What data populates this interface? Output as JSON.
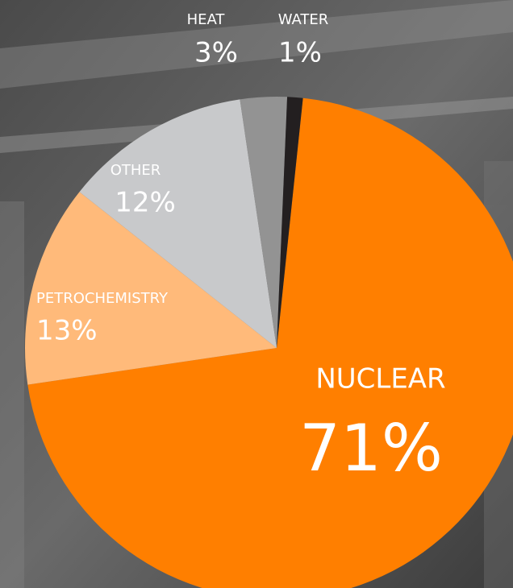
{
  "chart_data": {
    "type": "pie",
    "categories": [
      "NUCLEAR",
      "PETROCHEMISTRY",
      "OTHER",
      "HEAT",
      "WATER"
    ],
    "values": [
      71,
      13,
      12,
      3,
      1
    ],
    "value_labels": [
      "71%",
      "13%",
      "12%",
      "3%",
      "1%"
    ],
    "colors": [
      "#ff7f00",
      "#ffba7a",
      "#c8c9cb",
      "#939393",
      "#231f20"
    ]
  }
}
